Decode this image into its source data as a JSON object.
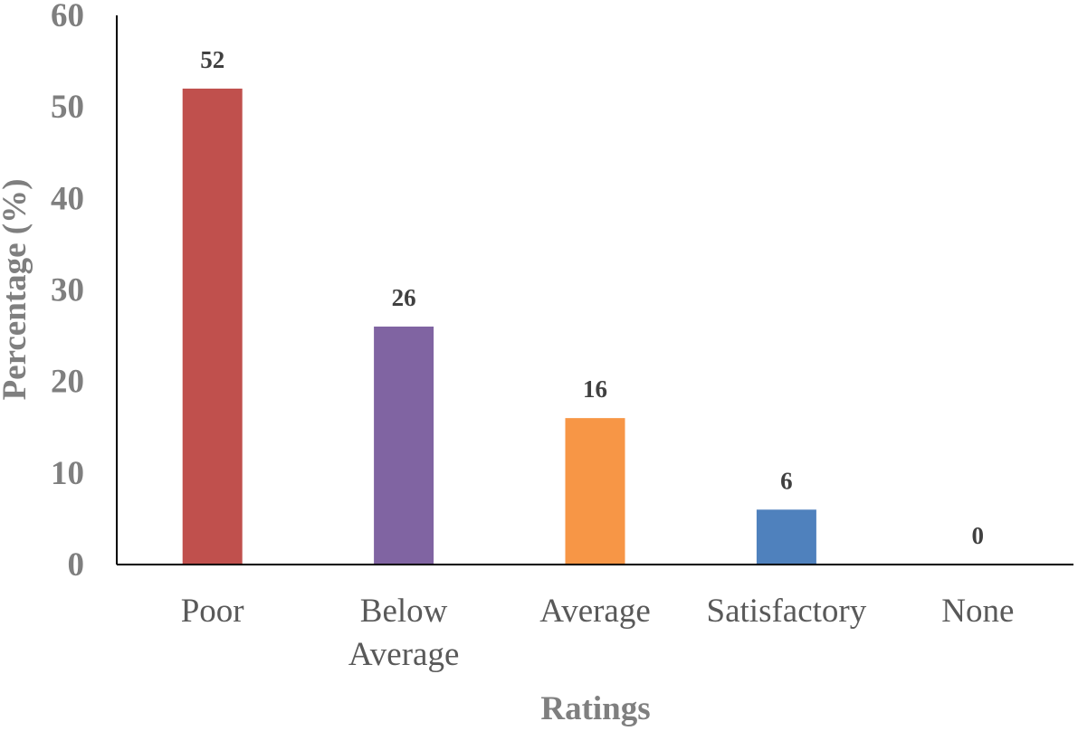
{
  "chart_data": {
    "type": "bar",
    "categories": [
      "Poor",
      "Below Average",
      "Average",
      "Satisfactory",
      "None"
    ],
    "category_lines": [
      [
        "Poor"
      ],
      [
        "Below",
        "Average"
      ],
      [
        "Average"
      ],
      [
        "Satisfactory"
      ],
      [
        "None"
      ]
    ],
    "values": [
      52,
      26,
      16,
      6,
      0
    ],
    "data_labels": [
      "52",
      "26",
      "16",
      "6",
      "0"
    ],
    "colors": [
      "#c0504d",
      "#8064a2",
      "#f79646",
      "#4f81bd",
      "#9bbb59"
    ],
    "xlabel": "Ratings",
    "ylabel": "Percentage (%)",
    "ylim": [
      0,
      60
    ],
    "yticks": [
      0,
      10,
      20,
      30,
      40,
      50,
      60
    ],
    "grid": false,
    "legend": "none"
  }
}
